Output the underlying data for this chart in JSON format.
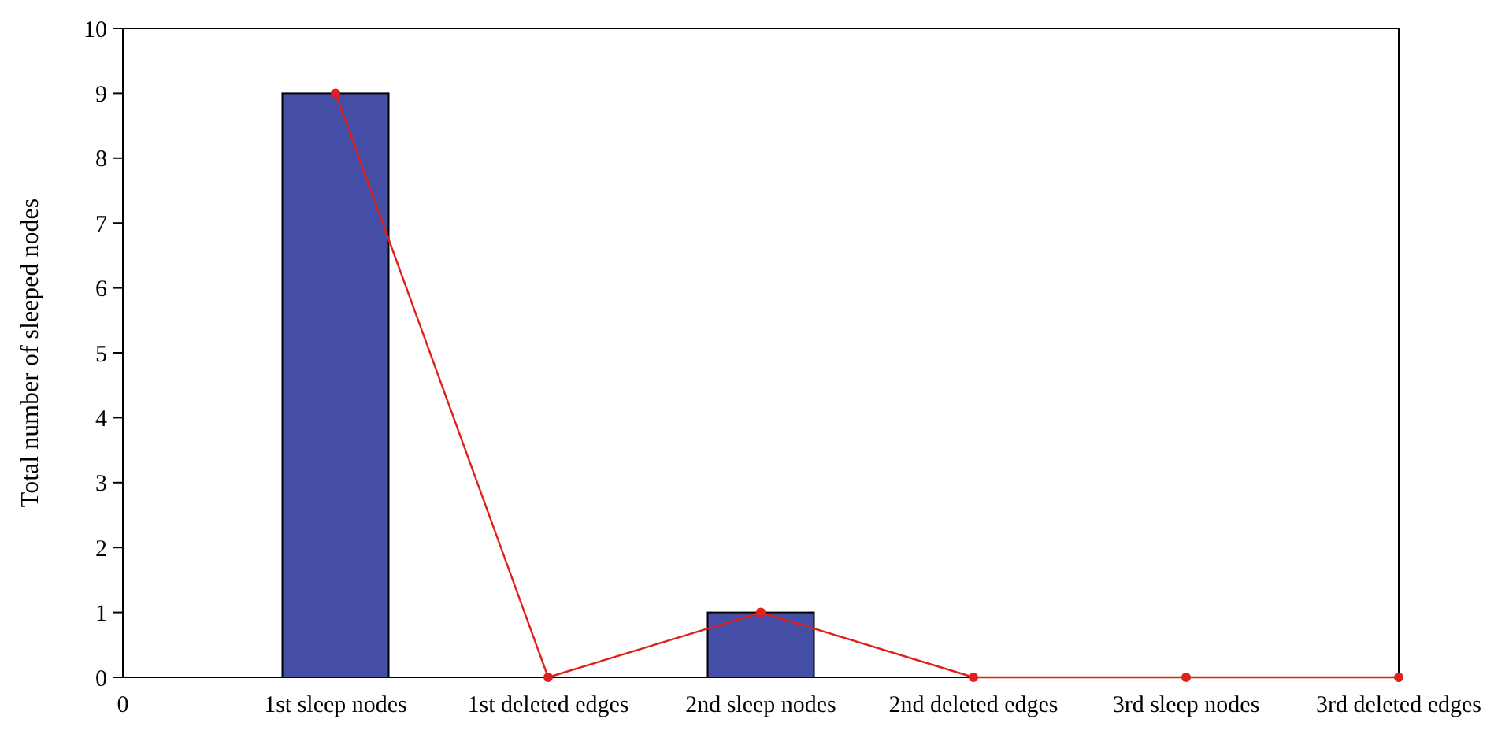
{
  "chart_data": {
    "type": "bar",
    "ylabel": "Total number of sleeped nodes",
    "categories": [
      "0",
      "1st sleep nodes",
      "1st deleted edges",
      "2nd sleep nodes",
      "2nd deleted edges",
      "3rd sleep nodes",
      "3rd deleted edges"
    ],
    "series": [
      {
        "color": "#444ea6",
        "values": [
          null,
          9,
          0,
          1,
          0,
          0,
          0
        ]
      },
      {
        "type": "line",
        "color": "#e0201b",
        "values": [
          null,
          9,
          0,
          1,
          0,
          0,
          0
        ]
      }
    ],
    "ylim": [
      0,
      10
    ],
    "yticks": [
      0,
      1,
      2,
      3,
      4,
      5,
      6,
      7,
      8,
      9,
      10
    ],
    "grid": false,
    "marker": "circle",
    "line_style": "solid"
  }
}
